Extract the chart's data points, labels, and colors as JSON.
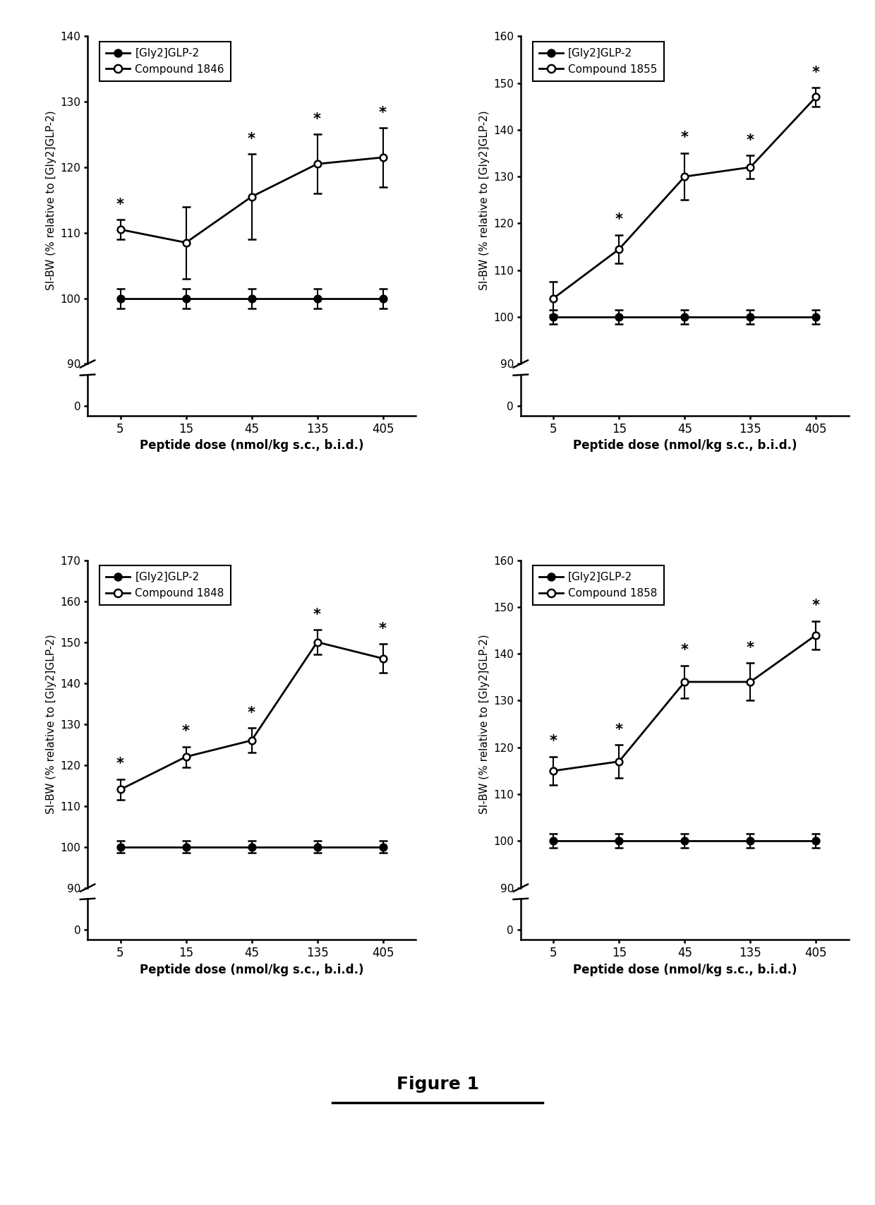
{
  "x_positions": [
    1,
    2,
    3,
    4,
    5
  ],
  "x_labels": [
    "5",
    "15",
    "45",
    "135",
    "405"
  ],
  "xlabel": "Peptide dose (nmol/kg s.c., b.i.d.)",
  "ylabel": "SI-BW (% relative to [Gly2]GLP-2)",
  "figure_title": "Figure 1",
  "plots": [
    {
      "compound": "Compound 1846",
      "glp2_y": [
        100,
        100,
        100,
        100,
        100
      ],
      "glp2_yerr": [
        1.5,
        1.5,
        1.5,
        1.5,
        1.5
      ],
      "comp_y": [
        110.5,
        108.5,
        115.5,
        120.5,
        121.5
      ],
      "comp_yerr": [
        1.5,
        5.5,
        6.5,
        4.5,
        4.5
      ],
      "sig_comp": [
        1,
        3,
        4,
        5
      ],
      "ylim": [
        90,
        140
      ],
      "yticks": [
        90,
        100,
        110,
        120,
        130,
        140
      ]
    },
    {
      "compound": "Compound 1855",
      "glp2_y": [
        100,
        100,
        100,
        100,
        100
      ],
      "glp2_yerr": [
        1.5,
        1.5,
        1.5,
        1.5,
        1.5
      ],
      "comp_y": [
        104,
        114.5,
        130,
        132,
        147
      ],
      "comp_yerr": [
        3.5,
        3.0,
        5.0,
        2.5,
        2.0
      ],
      "sig_comp": [
        2,
        3,
        4,
        5
      ],
      "ylim": [
        90,
        160
      ],
      "yticks": [
        90,
        100,
        110,
        120,
        130,
        140,
        150,
        160
      ]
    },
    {
      "compound": "Compound 1848",
      "glp2_y": [
        100,
        100,
        100,
        100,
        100
      ],
      "glp2_yerr": [
        1.5,
        1.5,
        1.5,
        1.5,
        1.5
      ],
      "comp_y": [
        114,
        122,
        126,
        150,
        146
      ],
      "comp_yerr": [
        2.5,
        2.5,
        3.0,
        3.0,
        3.5
      ],
      "sig_comp": [
        1,
        2,
        3,
        4,
        5
      ],
      "ylim": [
        90,
        170
      ],
      "yticks": [
        90,
        100,
        110,
        120,
        130,
        140,
        150,
        160,
        170
      ]
    },
    {
      "compound": "Compound 1858",
      "glp2_y": [
        100,
        100,
        100,
        100,
        100
      ],
      "glp2_yerr": [
        1.5,
        1.5,
        1.5,
        1.5,
        1.5
      ],
      "comp_y": [
        115,
        117,
        134,
        134,
        144
      ],
      "comp_yerr": [
        3.0,
        3.5,
        3.5,
        4.0,
        3.0
      ],
      "sig_comp": [
        1,
        2,
        3,
        4,
        5
      ],
      "ylim": [
        90,
        160
      ],
      "yticks": [
        90,
        100,
        110,
        120,
        130,
        140,
        150,
        160
      ]
    }
  ]
}
